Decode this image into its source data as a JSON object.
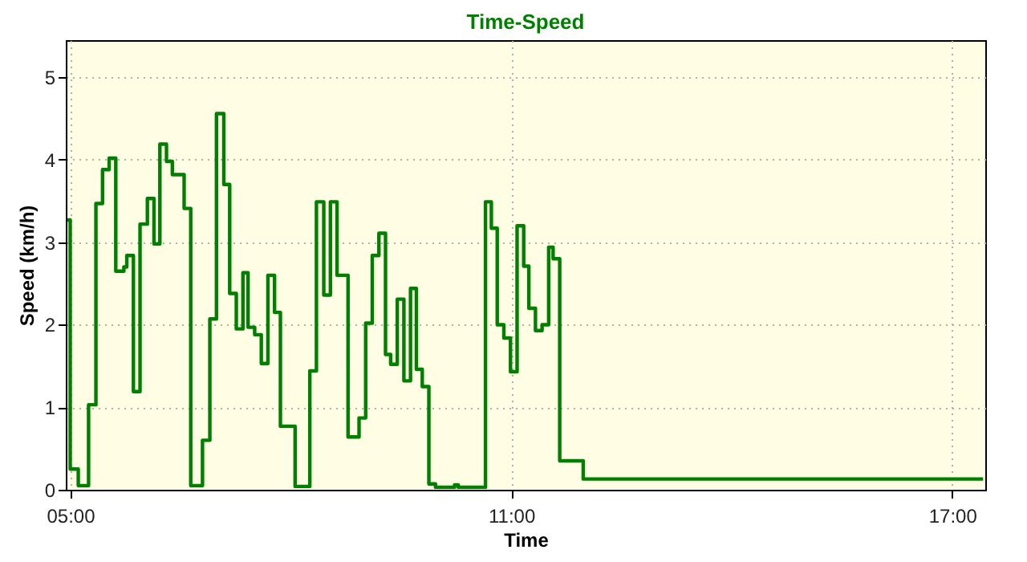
{
  "chart_data": {
    "type": "step",
    "title": "Time-Speed",
    "xlabel": "Time",
    "ylabel": "Speed (km/h)",
    "x": [
      4.96,
      5.0,
      5.11,
      5.25,
      5.35,
      5.44,
      5.53,
      5.62,
      5.73,
      5.77,
      5.86,
      5.95,
      6.05,
      6.14,
      6.22,
      6.31,
      6.39,
      6.55,
      6.64,
      6.8,
      6.9,
      6.99,
      7.09,
      7.17,
      7.26,
      7.35,
      7.42,
      7.51,
      7.6,
      7.69,
      7.78,
      7.86,
      8.06,
      8.26,
      8.35,
      8.45,
      8.54,
      8.63,
      8.78,
      8.93,
      9.02,
      9.11,
      9.2,
      9.29,
      9.36,
      9.45,
      9.54,
      9.63,
      9.71,
      9.79,
      9.88,
      9.97,
      10.23,
      10.28,
      10.65,
      10.73,
      10.81,
      10.9,
      10.99,
      11.08,
      11.17,
      11.24,
      11.33,
      11.42,
      11.51,
      11.57,
      11.66,
      11.98,
      17.42
    ],
    "series": [
      {
        "color": "#008000",
        "values": [
          3.27,
          0.25,
          0.05,
          1.03,
          3.47,
          3.88,
          4.02,
          2.65,
          2.7,
          2.84,
          1.19,
          3.22,
          3.53,
          2.98,
          4.19,
          3.98,
          3.82,
          3.41,
          0.05,
          0.6,
          2.07,
          4.56,
          3.7,
          2.38,
          1.95,
          2.63,
          1.97,
          1.88,
          1.53,
          2.6,
          2.15,
          0.77,
          0.04,
          1.44,
          3.49,
          2.36,
          3.49,
          2.6,
          0.64,
          0.87,
          2.02,
          2.84,
          3.11,
          1.64,
          1.52,
          2.31,
          1.32,
          2.44,
          1.46,
          1.25,
          0.07,
          0.03,
          0.06,
          0.03,
          3.49,
          3.17,
          2.0,
          1.84,
          1.43,
          3.2,
          2.71,
          2.2,
          1.93,
          2.0,
          2.94,
          2.8,
          0.35,
          0.13,
          0.13
        ]
      }
    ],
    "xlim": [
      4.94,
      17.45
    ],
    "xticks": [
      {
        "value": 5,
        "label": "05:00"
      },
      {
        "value": 11,
        "label": "11:00"
      },
      {
        "value": 17,
        "label": "17:00"
      }
    ],
    "ylim": [
      0,
      5.45
    ],
    "yticks": [
      0,
      1,
      2,
      3,
      4,
      5
    ],
    "grid": true
  }
}
